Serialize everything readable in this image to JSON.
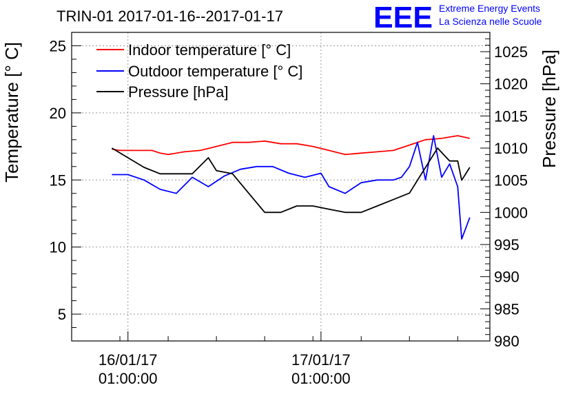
{
  "header": {
    "logo_text": "EEE",
    "logo_line1": "Extreme Energy Events",
    "logo_line2": "La Scienza nelle Scuole"
  },
  "chart_data": {
    "type": "line",
    "title": "TRIN-01 2017-01-16--2017-01-17",
    "ylabel": "Temperature [° C]",
    "y2label": "Pressure [hPa]",
    "ylim": [
      3,
      26
    ],
    "y2lim": [
      980,
      1028
    ],
    "yticks": [
      5,
      10,
      15,
      20,
      25
    ],
    "y2ticks": [
      980,
      985,
      990,
      995,
      1000,
      1005,
      1010,
      1015,
      1020,
      1025
    ],
    "xlim": [
      "2017-01-15 18:00",
      "2017-01-17 22:00"
    ],
    "xticks": [
      {
        "x": "2017-01-16 01:00",
        "label1": "16/01/17",
        "label2": "01:00:00"
      },
      {
        "x": "2017-01-17 01:00",
        "label1": "17/01/17",
        "label2": "01:00:00"
      }
    ],
    "grid": true,
    "legend_position": "top-left",
    "series": [
      {
        "name": "Indoor temperature [° C]",
        "axis": "left",
        "color": "#ff0000",
        "x": [
          "2017-01-15 23:00",
          "2017-01-16 00:00",
          "2017-01-16 02:00",
          "2017-01-16 04:00",
          "2017-01-16 05:00",
          "2017-01-16 06:00",
          "2017-01-16 08:00",
          "2017-01-16 10:00",
          "2017-01-16 12:00",
          "2017-01-16 14:00",
          "2017-01-16 16:00",
          "2017-01-16 18:00",
          "2017-01-16 20:00",
          "2017-01-16 22:00",
          "2017-01-17 00:00",
          "2017-01-17 02:00",
          "2017-01-17 04:00",
          "2017-01-17 06:00",
          "2017-01-17 08:00",
          "2017-01-17 10:00",
          "2017-01-17 12:00",
          "2017-01-17 14:00",
          "2017-01-17 16:00",
          "2017-01-17 18:00",
          "2017-01-17 19:30"
        ],
        "y": [
          17.3,
          17.2,
          17.2,
          17.2,
          17.0,
          16.9,
          17.1,
          17.2,
          17.5,
          17.8,
          17.8,
          17.9,
          17.7,
          17.7,
          17.5,
          17.2,
          16.9,
          17.0,
          17.1,
          17.2,
          17.6,
          18.0,
          18.1,
          18.3,
          18.1
        ]
      },
      {
        "name": "Outdoor temperature [° C]",
        "axis": "left",
        "color": "#0000ff",
        "x": [
          "2017-01-15 23:00",
          "2017-01-16 01:00",
          "2017-01-16 03:00",
          "2017-01-16 05:00",
          "2017-01-16 07:00",
          "2017-01-16 09:00",
          "2017-01-16 11:00",
          "2017-01-16 13:00",
          "2017-01-16 15:00",
          "2017-01-16 17:00",
          "2017-01-16 19:00",
          "2017-01-16 21:00",
          "2017-01-16 23:00",
          "2017-01-17 01:00",
          "2017-01-17 02:00",
          "2017-01-17 04:00",
          "2017-01-17 06:00",
          "2017-01-17 08:00",
          "2017-01-17 10:00",
          "2017-01-17 11:00",
          "2017-01-17 12:00",
          "2017-01-17 13:00",
          "2017-01-17 14:00",
          "2017-01-17 15:00",
          "2017-01-17 16:00",
          "2017-01-17 17:00",
          "2017-01-17 18:00",
          "2017-01-17 18:30",
          "2017-01-17 19:30"
        ],
        "y": [
          15.4,
          15.4,
          15.0,
          14.3,
          14.0,
          15.2,
          14.5,
          15.3,
          15.8,
          16.0,
          16.0,
          15.5,
          15.2,
          15.5,
          14.5,
          14.0,
          14.8,
          15.0,
          15.0,
          15.2,
          16.0,
          17.8,
          15.0,
          18.3,
          15.2,
          16.2,
          14.5,
          10.6,
          12.2
        ]
      },
      {
        "name": "Pressure [hPa]",
        "axis": "right",
        "color": "#000000",
        "x": [
          "2017-01-15 23:00",
          "2017-01-16 01:00",
          "2017-01-16 03:00",
          "2017-01-16 05:00",
          "2017-01-16 07:00",
          "2017-01-16 09:00",
          "2017-01-16 11:00",
          "2017-01-16 12:00",
          "2017-01-16 14:00",
          "2017-01-16 16:00",
          "2017-01-16 18:00",
          "2017-01-16 20:00",
          "2017-01-16 22:00",
          "2017-01-17 00:00",
          "2017-01-17 02:00",
          "2017-01-17 04:00",
          "2017-01-17 06:00",
          "2017-01-17 08:00",
          "2017-01-17 10:00",
          "2017-01-17 12:00",
          "2017-01-17 14:00",
          "2017-01-17 15:30",
          "2017-01-17 17:00",
          "2017-01-17 18:00",
          "2017-01-17 18:30",
          "2017-01-17 19:30"
        ],
        "y": [
          1010,
          1008.5,
          1007,
          1006,
          1006,
          1006,
          1008.5,
          1006.5,
          1006,
          1003,
          1000,
          1000,
          1001,
          1001,
          1000.5,
          1000,
          1000,
          1001,
          1002,
          1003,
          1007,
          1010,
          1008,
          1008,
          1005,
          1007
        ]
      }
    ]
  }
}
